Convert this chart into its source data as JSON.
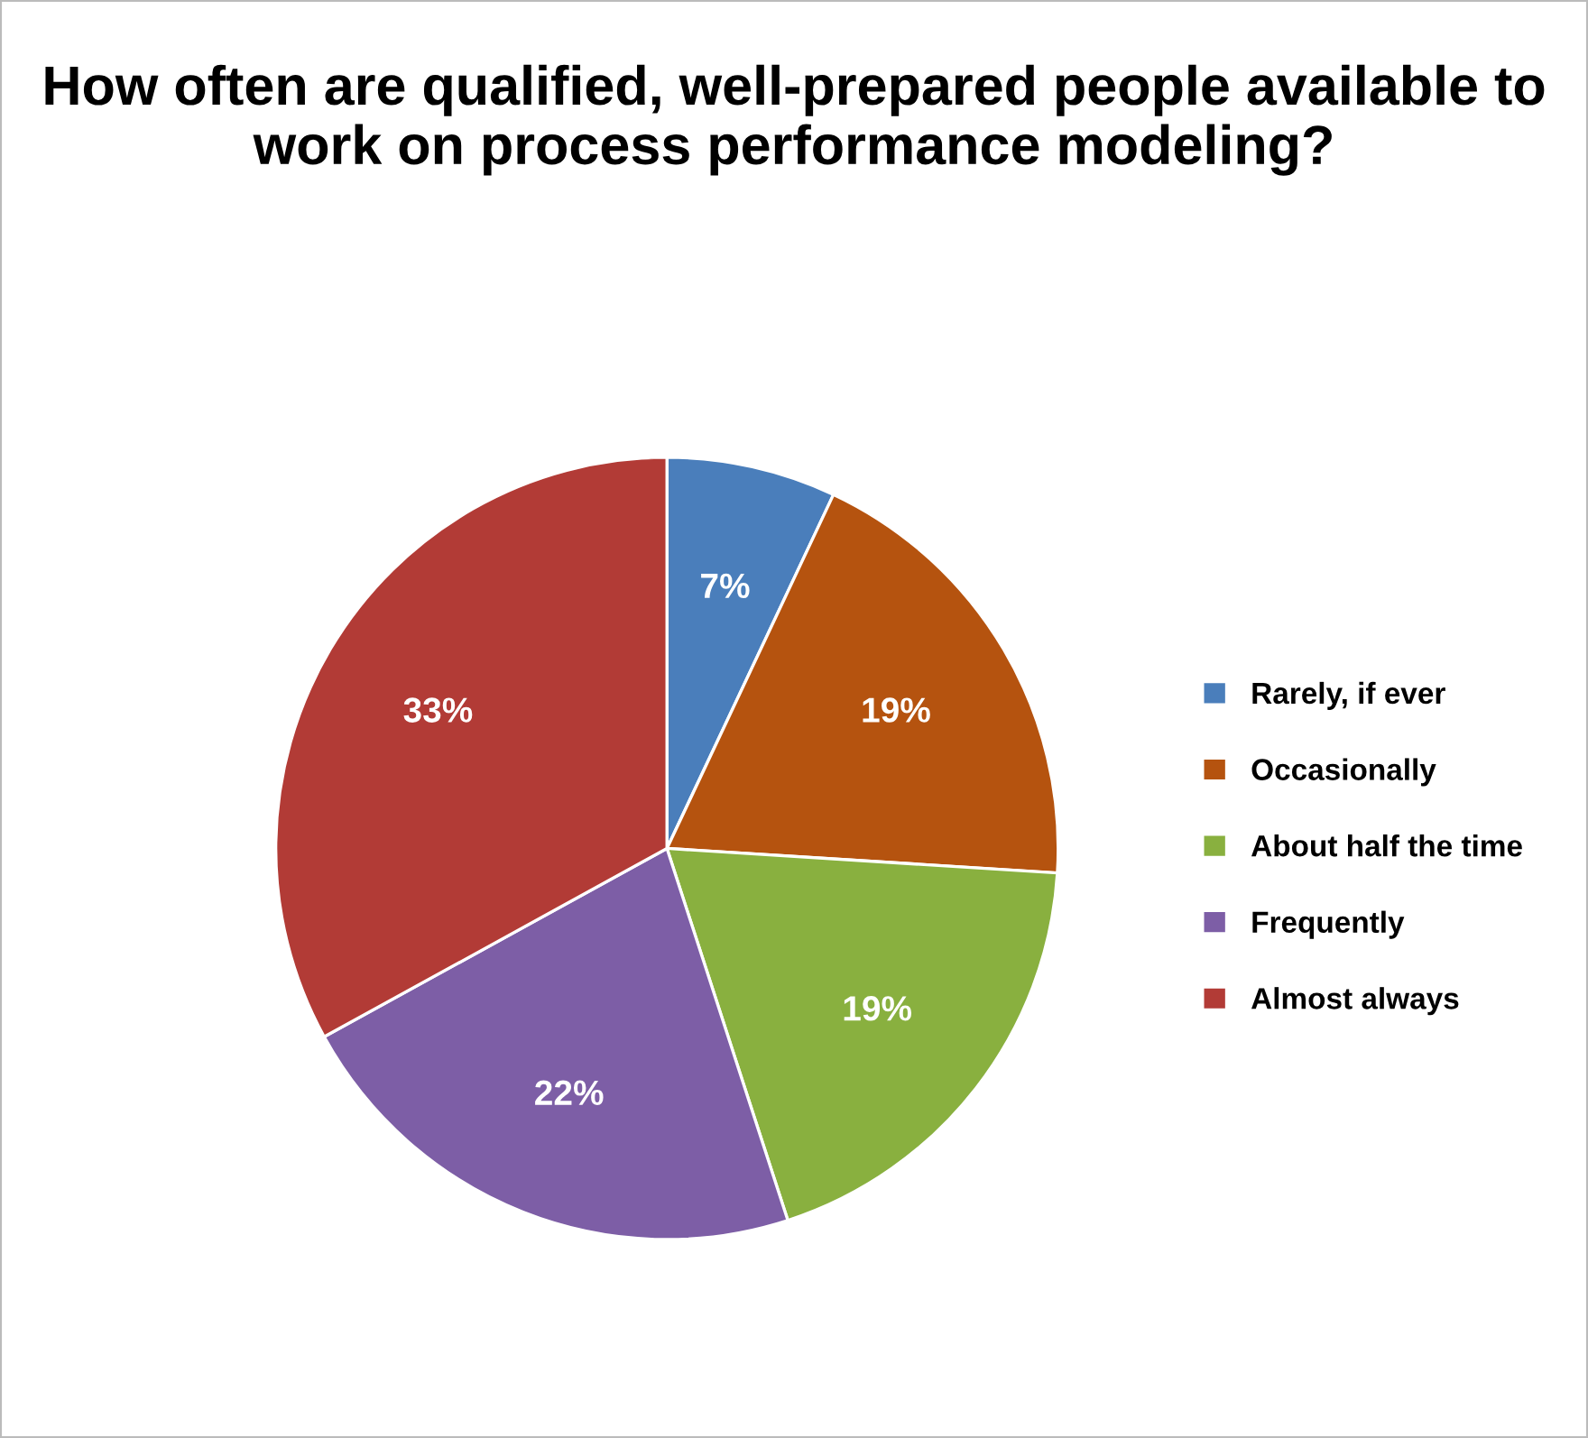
{
  "chart_data": {
    "type": "pie",
    "title": "How often are qualified, well-prepared people available to work on process performance modeling?",
    "categories": [
      "Rarely, if ever",
      "Occasionally",
      "About half the time",
      "Frequently",
      "Almost always"
    ],
    "values": [
      7,
      19,
      19,
      22,
      33
    ],
    "colors": [
      "#4a7ebb",
      "#b5530f",
      "#89b03f",
      "#7d5ea6",
      "#b23b36"
    ],
    "value_labels": [
      "7%",
      "19%",
      "19%",
      "22%",
      "33%"
    ],
    "legend": "right"
  }
}
